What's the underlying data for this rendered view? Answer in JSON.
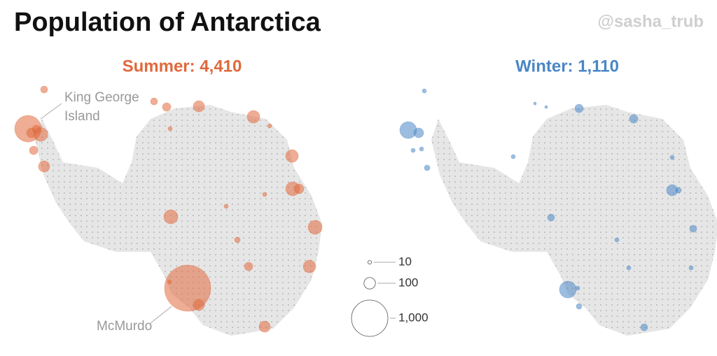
{
  "chart_data": {
    "type": "bubble-map",
    "title": "Population of Antarctica",
    "credit": "@sasha_trub",
    "panels": [
      {
        "title": "Summer: 4,410",
        "color": "#e0693c",
        "values": [
          534,
          148,
          72,
          53,
          53,
          95,
          37,
          37,
          53,
          95,
          120,
          13,
          120,
          148,
          72,
          148,
          13,
          24,
          148,
          120,
          53,
          1611,
          95,
          95,
          13,
          13,
          13
        ]
      },
      {
        "title": "Winter: 1,110",
        "color": "#4a86c5",
        "values": [
          213,
          72,
          13,
          6,
          6,
          53,
          53,
          95,
          24,
          37,
          37,
          213,
          13,
          24,
          37,
          13,
          13,
          13,
          13,
          13,
          13,
          24,
          13
        ]
      }
    ],
    "annotations": [
      {
        "lines": [
          "King George",
          "Island"
        ]
      },
      {
        "lines": [
          "McMurdo"
        ]
      }
    ],
    "size_legend": [
      {
        "value": 10,
        "label": "10"
      },
      {
        "value": 100,
        "label": "100"
      },
      {
        "value": 1000,
        "label": "1,000"
      }
    ]
  }
}
